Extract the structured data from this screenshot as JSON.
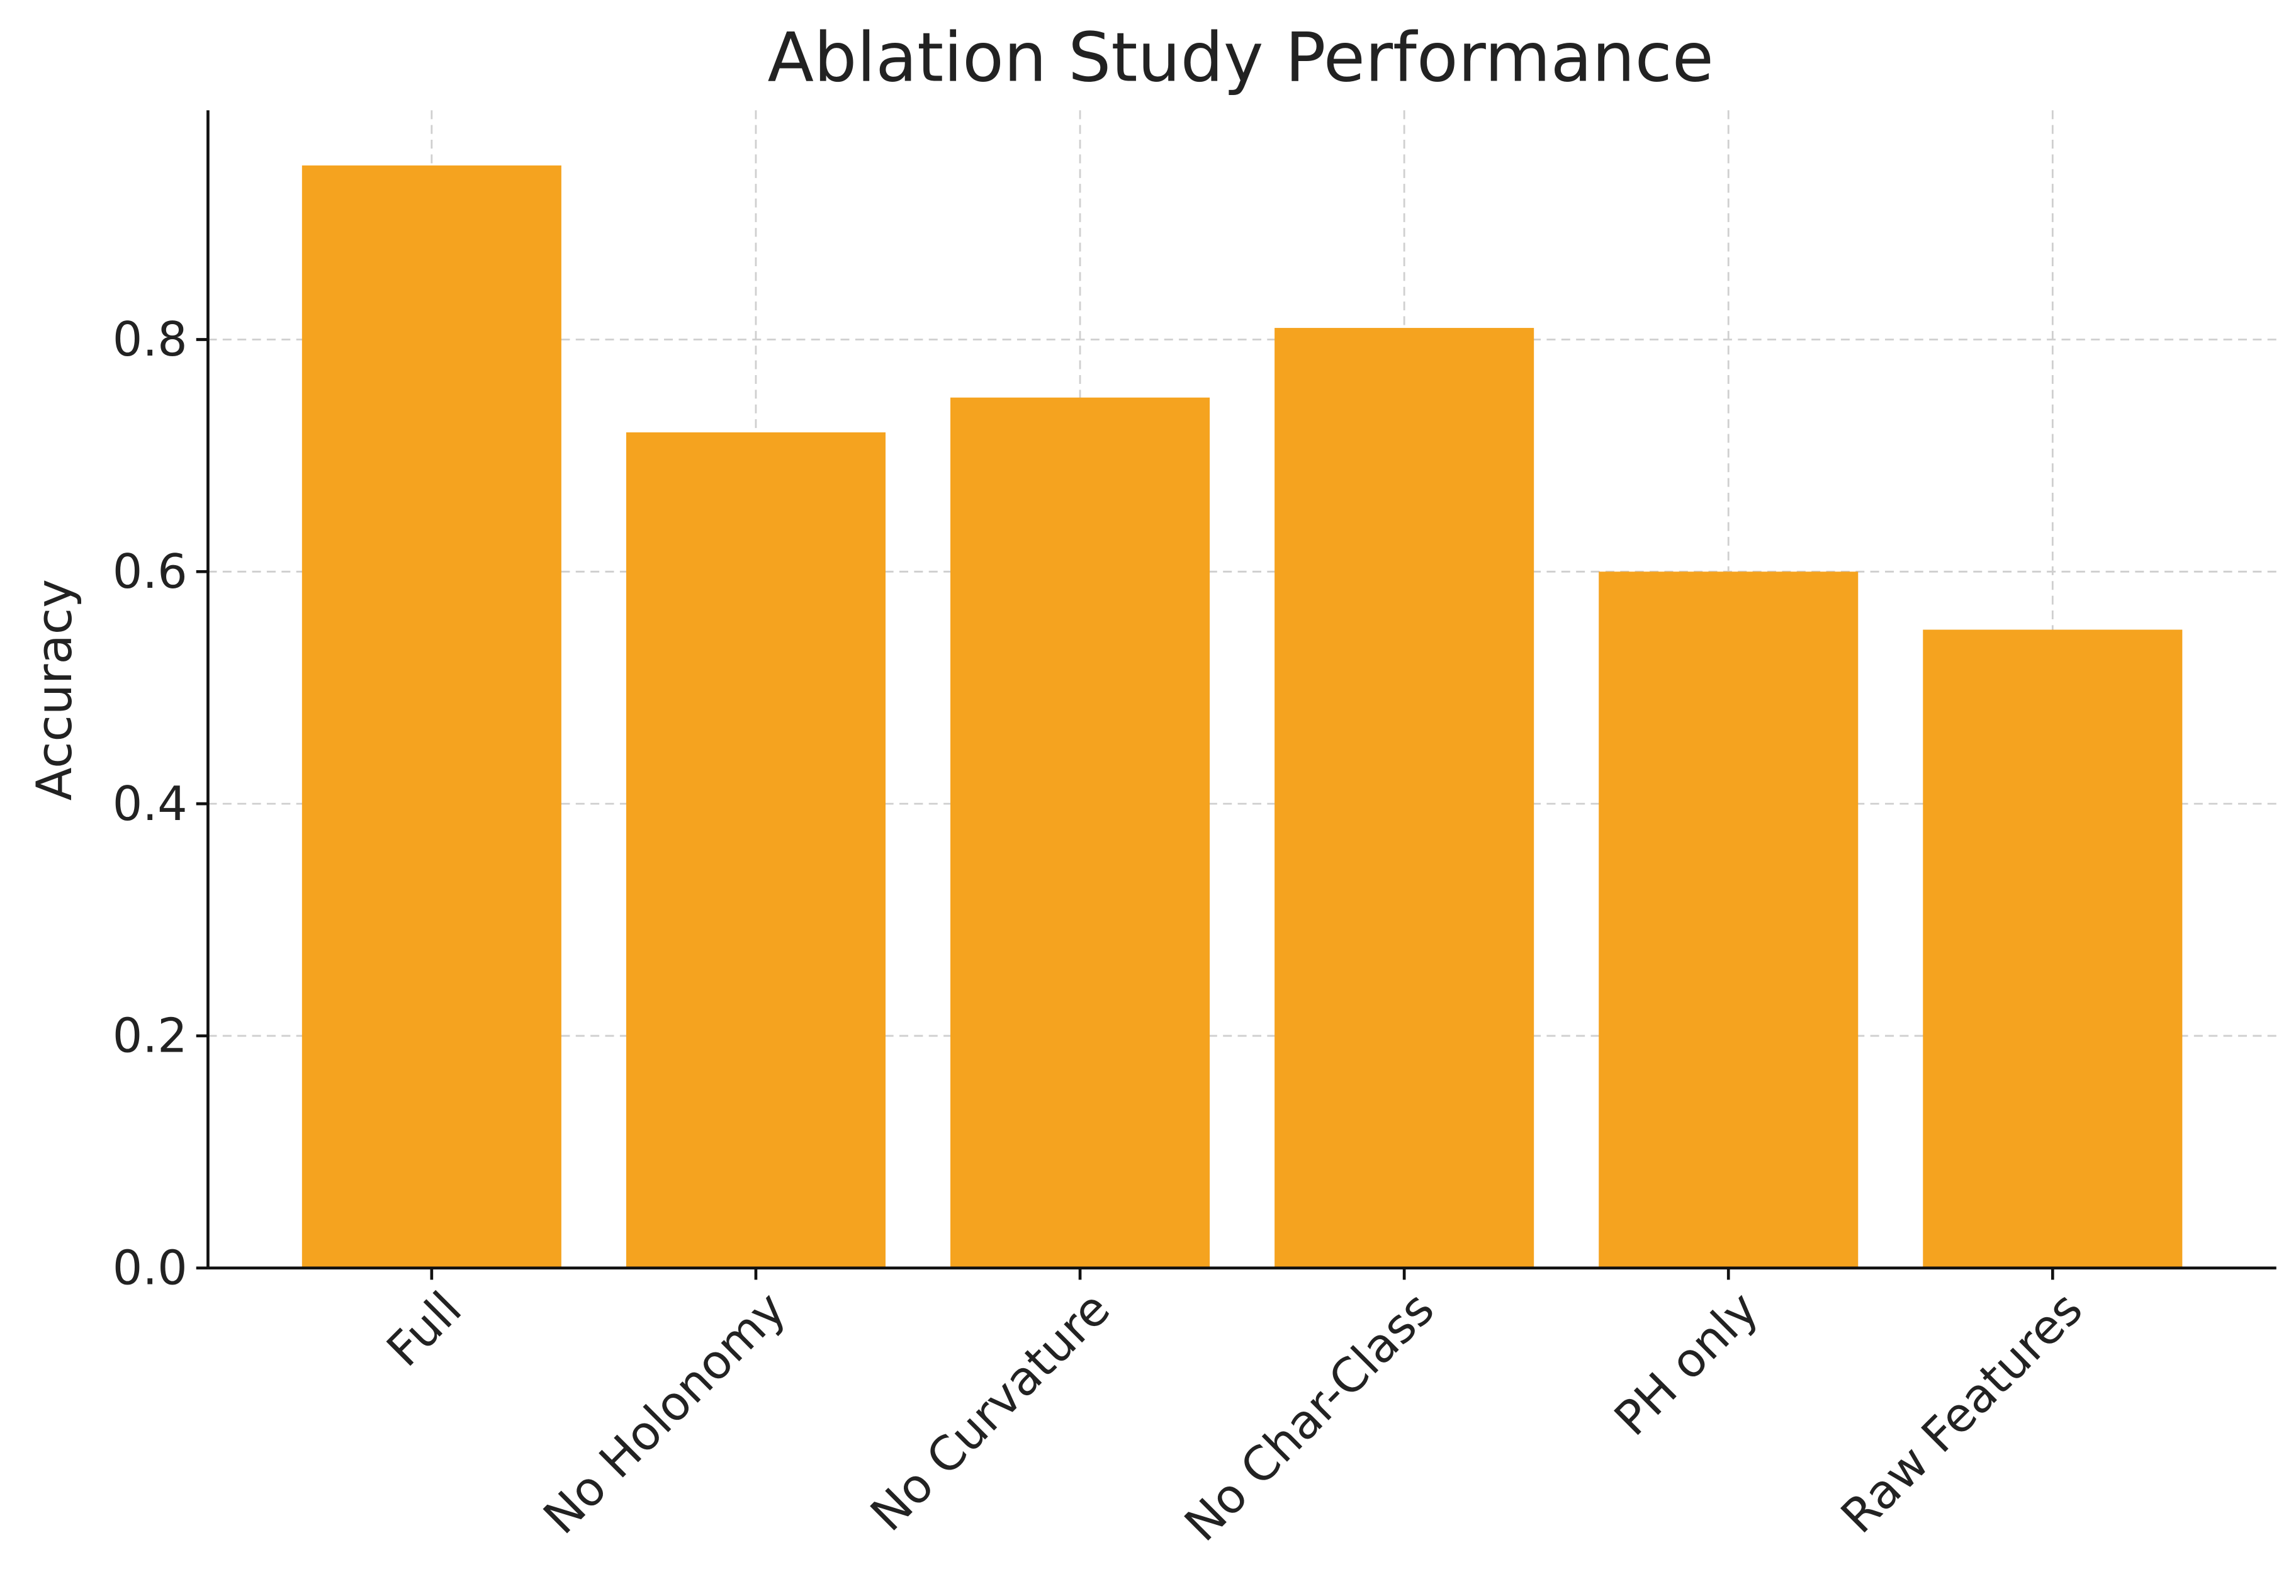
{
  "chart_data": {
    "type": "bar",
    "title": "Ablation Study Performance",
    "y_label": "Accuracy",
    "categories": [
      "Full",
      "No Holonomy",
      "No Curvature",
      "No Char-Class",
      "PH only",
      "Raw Features"
    ],
    "values": [
      0.95,
      0.72,
      0.75,
      0.81,
      0.6,
      0.55
    ],
    "color": "#f5a31f",
    "ylim": [
      0,
      0.9975
    ],
    "yticks": [
      {
        "value": 0,
        "label": "0.0"
      },
      0.2,
      0.4,
      0.6,
      0.8
    ],
    "grid": true
  }
}
